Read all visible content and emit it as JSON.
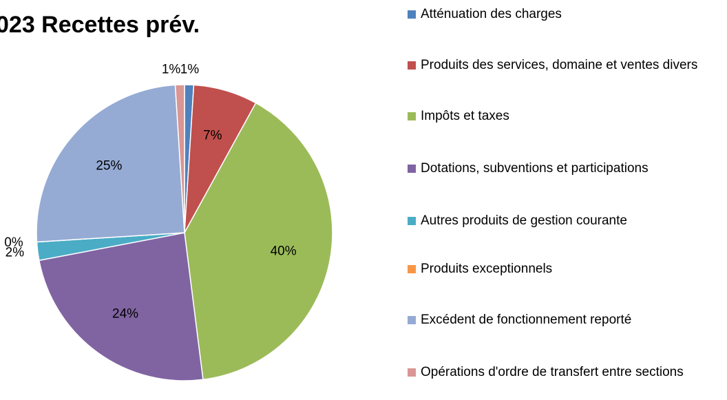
{
  "chart_data": {
    "type": "pie",
    "title": "023 Recettes prév.",
    "categories": [
      "Atténuation des charges",
      "Produits des services, domaine et ventes divers",
      "Impôts et taxes",
      "Dotations, subventions et participations",
      "Autres produits de gestion courante",
      "Produits exceptionnels",
      "Excédent de fonctionnement reporté",
      "Opérations d'ordre de transfert entre sections"
    ],
    "values": [
      1,
      7,
      40,
      24,
      2,
      0,
      25,
      1
    ],
    "value_labels": [
      "1%",
      "7%",
      "40%",
      "24%",
      "2%",
      "0%",
      "25%",
      "1%"
    ],
    "colors": [
      "#4f81bd",
      "#c0504d",
      "#9bbb59",
      "#8064a2",
      "#4bacc6",
      "#f79646",
      "#95abd4",
      "#d99694"
    ],
    "legend": "right"
  }
}
